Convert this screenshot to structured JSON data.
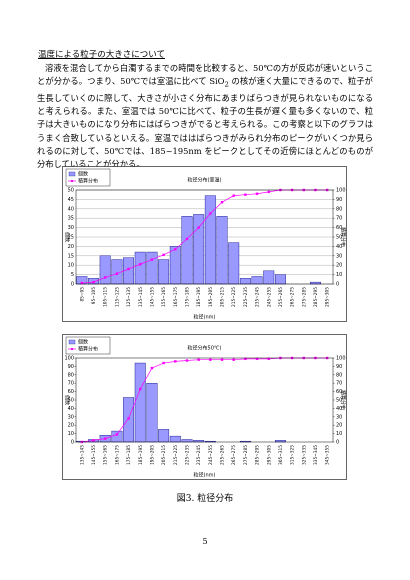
{
  "heading": "温度による粒子の大きさについて",
  "paragraph": [
    "溶液を混合してから白濁するまでの時間を比較すると、50℃の方が反応が速いということが分かる。つまり、50℃では室温に比べて ",
    "SiO",
    "2",
    " の核が速く大量にできるので、粒子が生長していくのに際して、大きさが小さく分布にあまりばらつきが見られないものになると考えられる。また、室温では 50℃に比べて、粒子の生長が遅く量も多くないので、粒子は大きいものになり分布にはばらつきがでると考えられる。この考察と以下のグラフはうまく合致しているといえる。室温でははばらつきがみられ分布のピークがいくつか見られるのに対して、50℃では、185~195nm をピークとしてその近傍にほとんどのものが分布していることが分かる。"
  ],
  "chart_data": [
    {
      "type": "bar",
      "title": "粒径分布(室温)",
      "x_label": "粒径(nm)",
      "y_label": "個数",
      "y2_label": "積算分布",
      "legend": "top-left",
      "grid": true,
      "categories": [
        "85~95",
        "95~105",
        "105~115",
        "115~125",
        "125~135",
        "135~145",
        "145~155",
        "155~165",
        "165~175",
        "175~185",
        "185~195",
        "195~205",
        "205~215",
        "215~225",
        "225~235",
        "235~245",
        "245~255",
        "255~265",
        "265~275",
        "275~285",
        "285~295",
        "295~305"
      ],
      "series": [
        {
          "name": "個数",
          "color": "#9999ff",
          "values": [
            4,
            3,
            15,
            13,
            14,
            17,
            17,
            13,
            20,
            36,
            37,
            47,
            36,
            22,
            3,
            4,
            7,
            5,
            0,
            0,
            1,
            0
          ]
        },
        {
          "name": "積算分布",
          "type": "line",
          "axis": "y2",
          "color": "#ff00ff",
          "values": [
            1,
            2,
            7,
            11,
            16,
            21,
            26,
            31,
            37,
            48,
            60,
            75,
            87,
            94,
            95,
            96,
            98,
            100,
            100,
            100,
            100,
            100
          ]
        }
      ],
      "ylim": [
        0,
        50
      ],
      "yticks": [
        0,
        5,
        10,
        15,
        20,
        25,
        30,
        35,
        40,
        45,
        50
      ],
      "y2lim": [
        0,
        100
      ],
      "y2ticks": [
        0,
        10,
        20,
        30,
        40,
        50,
        60,
        70,
        80,
        90,
        100
      ]
    },
    {
      "type": "bar",
      "title": "粒径分布50℃)",
      "x_label": "粒径(nm)",
      "y_label": "個数",
      "y2_label": "積算分布",
      "legend": "top-left",
      "grid": false,
      "categories": [
        "135~145",
        "145~155",
        "155~165",
        "165~175",
        "175~185",
        "185~195",
        "195~205",
        "205~215",
        "215~225",
        "225~235",
        "235~245",
        "245~255",
        "255~265",
        "265~275",
        "275~285",
        "285~295",
        "295~305",
        "305~315",
        "315~325",
        "325~335",
        "335~345",
        "345~355"
      ],
      "series": [
        {
          "name": "個数",
          "color": "#9999ff",
          "values": [
            1,
            3,
            8,
            13,
            53,
            94,
            70,
            15,
            7,
            3,
            2,
            1,
            0,
            0,
            1,
            0,
            0,
            2,
            0,
            0,
            0,
            0
          ]
        },
        {
          "name": "積算分布",
          "type": "line",
          "axis": "y2",
          "color": "#ff00ff",
          "values": [
            0,
            2,
            4,
            9,
            28,
            63,
            88,
            94,
            96,
            97,
            98,
            98,
            98,
            98,
            99,
            99,
            99,
            100,
            100,
            100,
            100,
            100
          ]
        }
      ],
      "ylim": [
        0,
        100
      ],
      "yticks": [
        0,
        10,
        20,
        30,
        40,
        50,
        60,
        70,
        80,
        90,
        100
      ],
      "y2lim": [
        0,
        100
      ],
      "y2ticks": [
        0,
        10,
        20,
        30,
        40,
        50,
        60,
        70,
        80,
        90,
        100
      ]
    }
  ],
  "figure_caption": "図3.  粒径分布",
  "page_number": "5"
}
